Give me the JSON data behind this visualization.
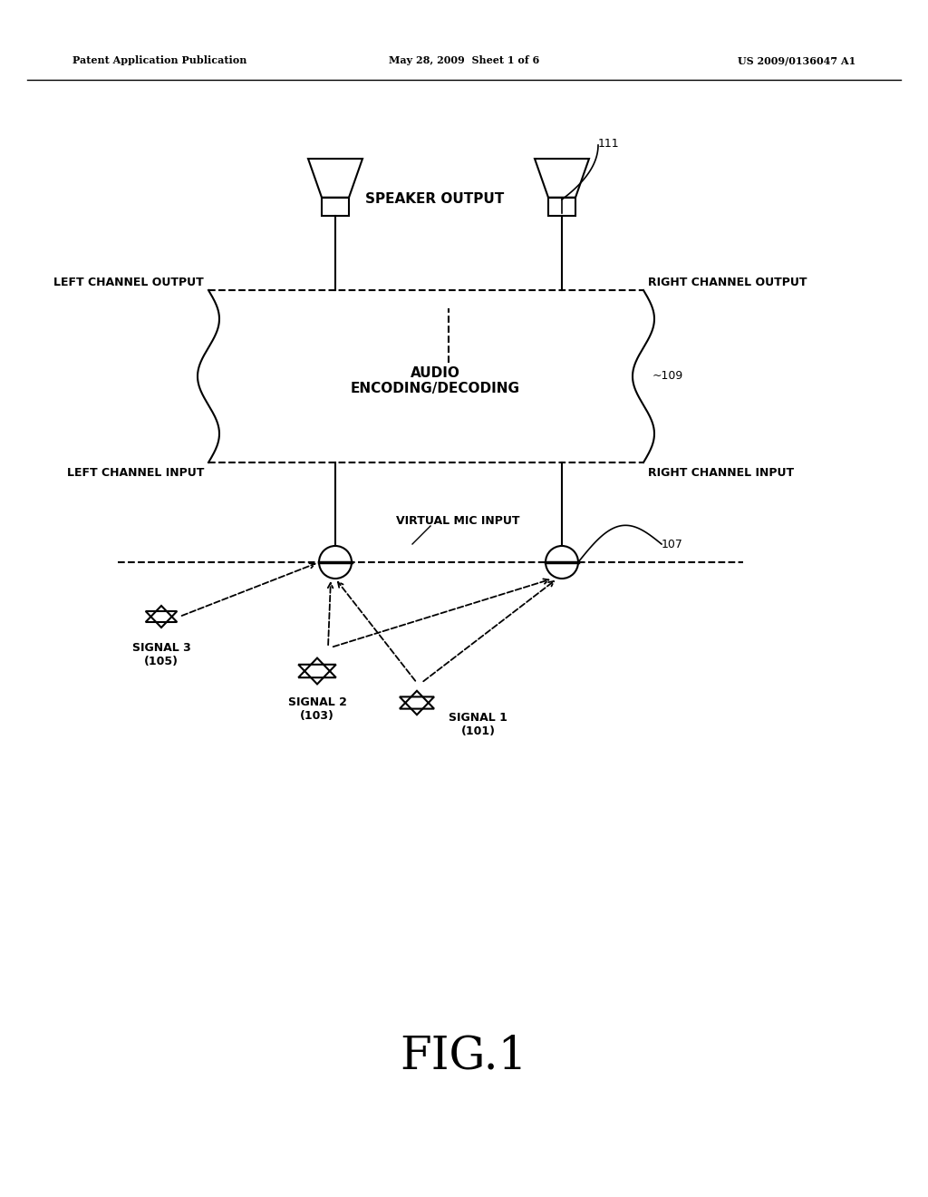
{
  "bg_color": "#ffffff",
  "header_left": "Patent Application Publication",
  "header_mid": "May 28, 2009  Sheet 1 of 6",
  "header_right": "US 2009/0136047 A1",
  "fig_label": "FIG.1",
  "label_111": "111",
  "label_109": "~109",
  "label_107": "107",
  "text_speaker_output": "SPEAKER OUTPUT",
  "text_audio": "AUDIO\nENCODING/DECODING",
  "text_left_ch_out": "LEFT CHANNEL OUTPUT",
  "text_right_ch_out": "RIGHT CHANNEL OUTPUT",
  "text_left_ch_in": "LEFT CHANNEL INPUT",
  "text_right_ch_in": "RIGHT CHANNEL INPUT",
  "text_virtual_mic": "VIRTUAL MIC INPUT",
  "text_signal1": "SIGNAL 1\n(101)",
  "text_signal2": "SIGNAL 2\n(103)",
  "text_signal3": "SIGNAL 3\n(105)"
}
